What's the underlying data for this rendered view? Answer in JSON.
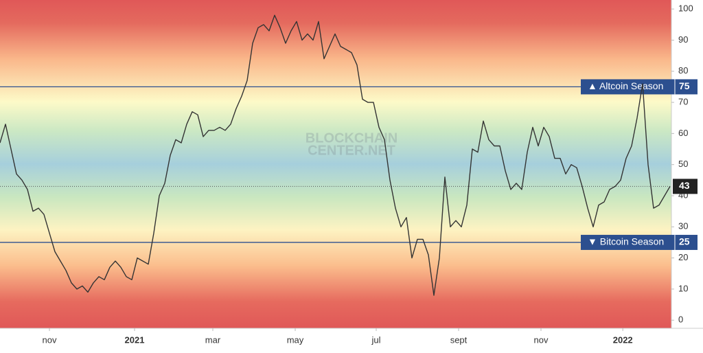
{
  "chart_data": {
    "type": "line",
    "watermark": [
      "BLOCKCHAIN",
      "CENTER.NET"
    ],
    "values": [
      57,
      63,
      55,
      47,
      45,
      42,
      35,
      36,
      34,
      28,
      22,
      19,
      16,
      12,
      10,
      11,
      9,
      12,
      14,
      13,
      17,
      19,
      17,
      14,
      13,
      20,
      19,
      18,
      28,
      40,
      44,
      53,
      58,
      57,
      63,
      67,
      66,
      59,
      61,
      61,
      62,
      61,
      63,
      68,
      72,
      77,
      89,
      94,
      95,
      93,
      98,
      94,
      89,
      93,
      96,
      90,
      92,
      90,
      96,
      84,
      88,
      92,
      88,
      87,
      86,
      82,
      71,
      70,
      70,
      62,
      58,
      45,
      36,
      30,
      33,
      20,
      26,
      26,
      21,
      8,
      20,
      46,
      30,
      32,
      30,
      37,
      55,
      54,
      64,
      58,
      56,
      56,
      48,
      42,
      44,
      42,
      54,
      62,
      56,
      62,
      59,
      52,
      52,
      47,
      50,
      49,
      43,
      36,
      30,
      37,
      38,
      42,
      43,
      45,
      52,
      56,
      65,
      76,
      50,
      36,
      37,
      40,
      43
    ],
    "color": "#333333",
    "xlim": [
      0,
      122.25
    ],
    "xticks": [
      {
        "value": 9,
        "label": "nov"
      },
      {
        "value": 24.5,
        "label": "2021"
      },
      {
        "value": 38.75,
        "label": "mar"
      },
      {
        "value": 53.75,
        "label": "may"
      },
      {
        "value": 68.5,
        "label": "jul"
      },
      {
        "value": 83.5,
        "label": "sept"
      },
      {
        "value": 98.5,
        "label": "nov"
      },
      {
        "value": 113.4,
        "label": "2022"
      }
    ],
    "ylim": [
      -2.6,
      102.9
    ],
    "yticks": [
      0,
      10,
      20,
      30,
      40,
      50,
      60,
      70,
      80,
      90,
      100
    ],
    "reference_lines": [
      {
        "value": 75,
        "label": "▲ Altcoin Season",
        "color": "#2c4f8f"
      },
      {
        "value": 25,
        "label": "▼ Bitcoin Season",
        "color": "#2c4f8f"
      }
    ],
    "current_value": 43
  }
}
